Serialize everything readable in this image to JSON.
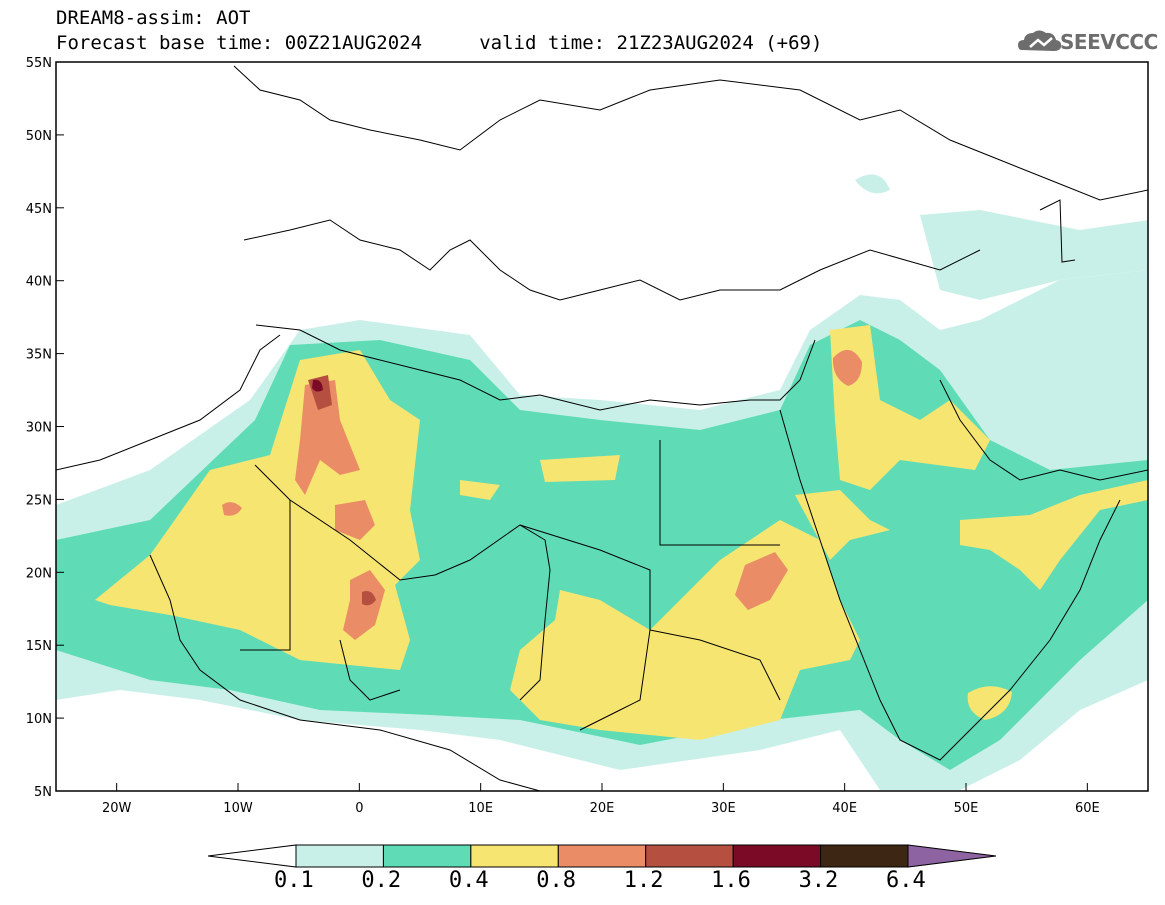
{
  "header": {
    "line1": "DREAM8-assim: AOT",
    "line2": "Forecast base time: 00Z21AUG2024     valid time: 21Z23AUG2024 (+69)"
  },
  "logo": {
    "text": "SEEVCCC",
    "icon": "cloud-logo-icon"
  },
  "map": {
    "lon_range": [
      -25,
      65
    ],
    "lat_range": [
      5,
      55
    ],
    "lat_ticks": [
      "55N",
      "50N",
      "45N",
      "40N",
      "35N",
      "30N",
      "25N",
      "20N",
      "15N",
      "10N",
      "5N"
    ],
    "lon_ticks": [
      "20W",
      "10W",
      "0",
      "10E",
      "20E",
      "30E",
      "40E",
      "50E",
      "60E"
    ]
  },
  "colorbar": {
    "levels": [
      "0.1",
      "0.2",
      "0.4",
      "0.8",
      "1.2",
      "1.6",
      "3.2",
      "6.4"
    ],
    "colors": [
      "#ffffff",
      "#c9f0e8",
      "#5fdcb5",
      "#f7e572",
      "#ea8d66",
      "#b55041",
      "#7a0a25",
      "#3d2614",
      "#8d63a2"
    ]
  }
}
